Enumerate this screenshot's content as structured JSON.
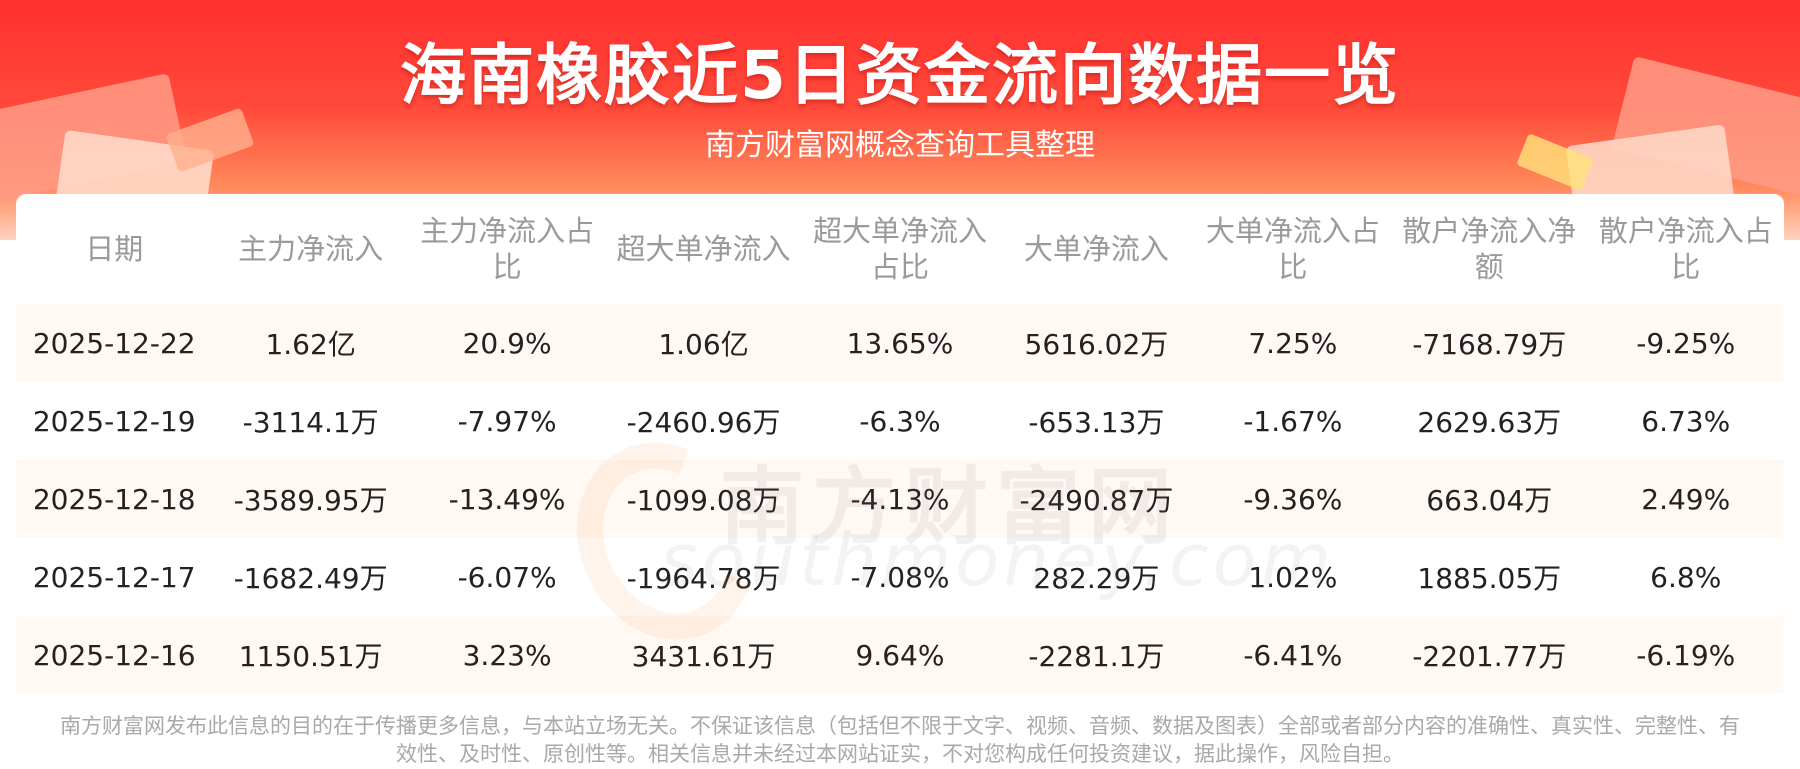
{
  "header": {
    "title": "海南橡胶近5日资金流向数据一览",
    "subtitle": "南方财富网概念查询工具整理"
  },
  "watermark": {
    "cn": "南方财富网",
    "en": "southmoney.com"
  },
  "table": {
    "headers": [
      "日期",
      "主力净流入",
      "主力净流入占比",
      "超大单净流入",
      "超大单净流入占比",
      "大单净流入",
      "大单净流入占比",
      "散户净流入净额",
      "散户净流入占比"
    ],
    "rows": [
      [
        "2025-12-22",
        "1.62亿",
        "20.9%",
        "1.06亿",
        "13.65%",
        "5616.02万",
        "7.25%",
        "-7168.79万",
        "-9.25%"
      ],
      [
        "2025-12-19",
        "-3114.1万",
        "-7.97%",
        "-2460.96万",
        "-6.3%",
        "-653.13万",
        "-1.67%",
        "2629.63万",
        "6.73%"
      ],
      [
        "2025-12-18",
        "-3589.95万",
        "-13.49%",
        "-1099.08万",
        "-4.13%",
        "-2490.87万",
        "-9.36%",
        "663.04万",
        "2.49%"
      ],
      [
        "2025-12-17",
        "-1682.49万",
        "-6.07%",
        "-1964.78万",
        "-7.08%",
        "282.29万",
        "1.02%",
        "1885.05万",
        "6.8%"
      ],
      [
        "2025-12-16",
        "1150.51万",
        "3.23%",
        "3431.61万",
        "9.64%",
        "-2281.1万",
        "-6.41%",
        "-2201.77万",
        "-6.19%"
      ]
    ]
  },
  "footer": {
    "disclaimer": "南方财富网发布此信息的目的在于传播更多信息，与本站立场无关。不保证该信息（包括但不限于文字、视频、音频、数据及图表）全部或者部分内容的准确性、真实性、完整性、有效性、及时性、原创性等。相关信息并未经过本网站证实，不对您构成任何投资建议，据此操作，风险自担。"
  },
  "colors": {
    "banner_red": "#ff2f2f",
    "banner_light": "#ffd3bf",
    "row_stripe": "#fff8f3",
    "header_text": "#9a9a9a",
    "cell_text": "#222222"
  }
}
